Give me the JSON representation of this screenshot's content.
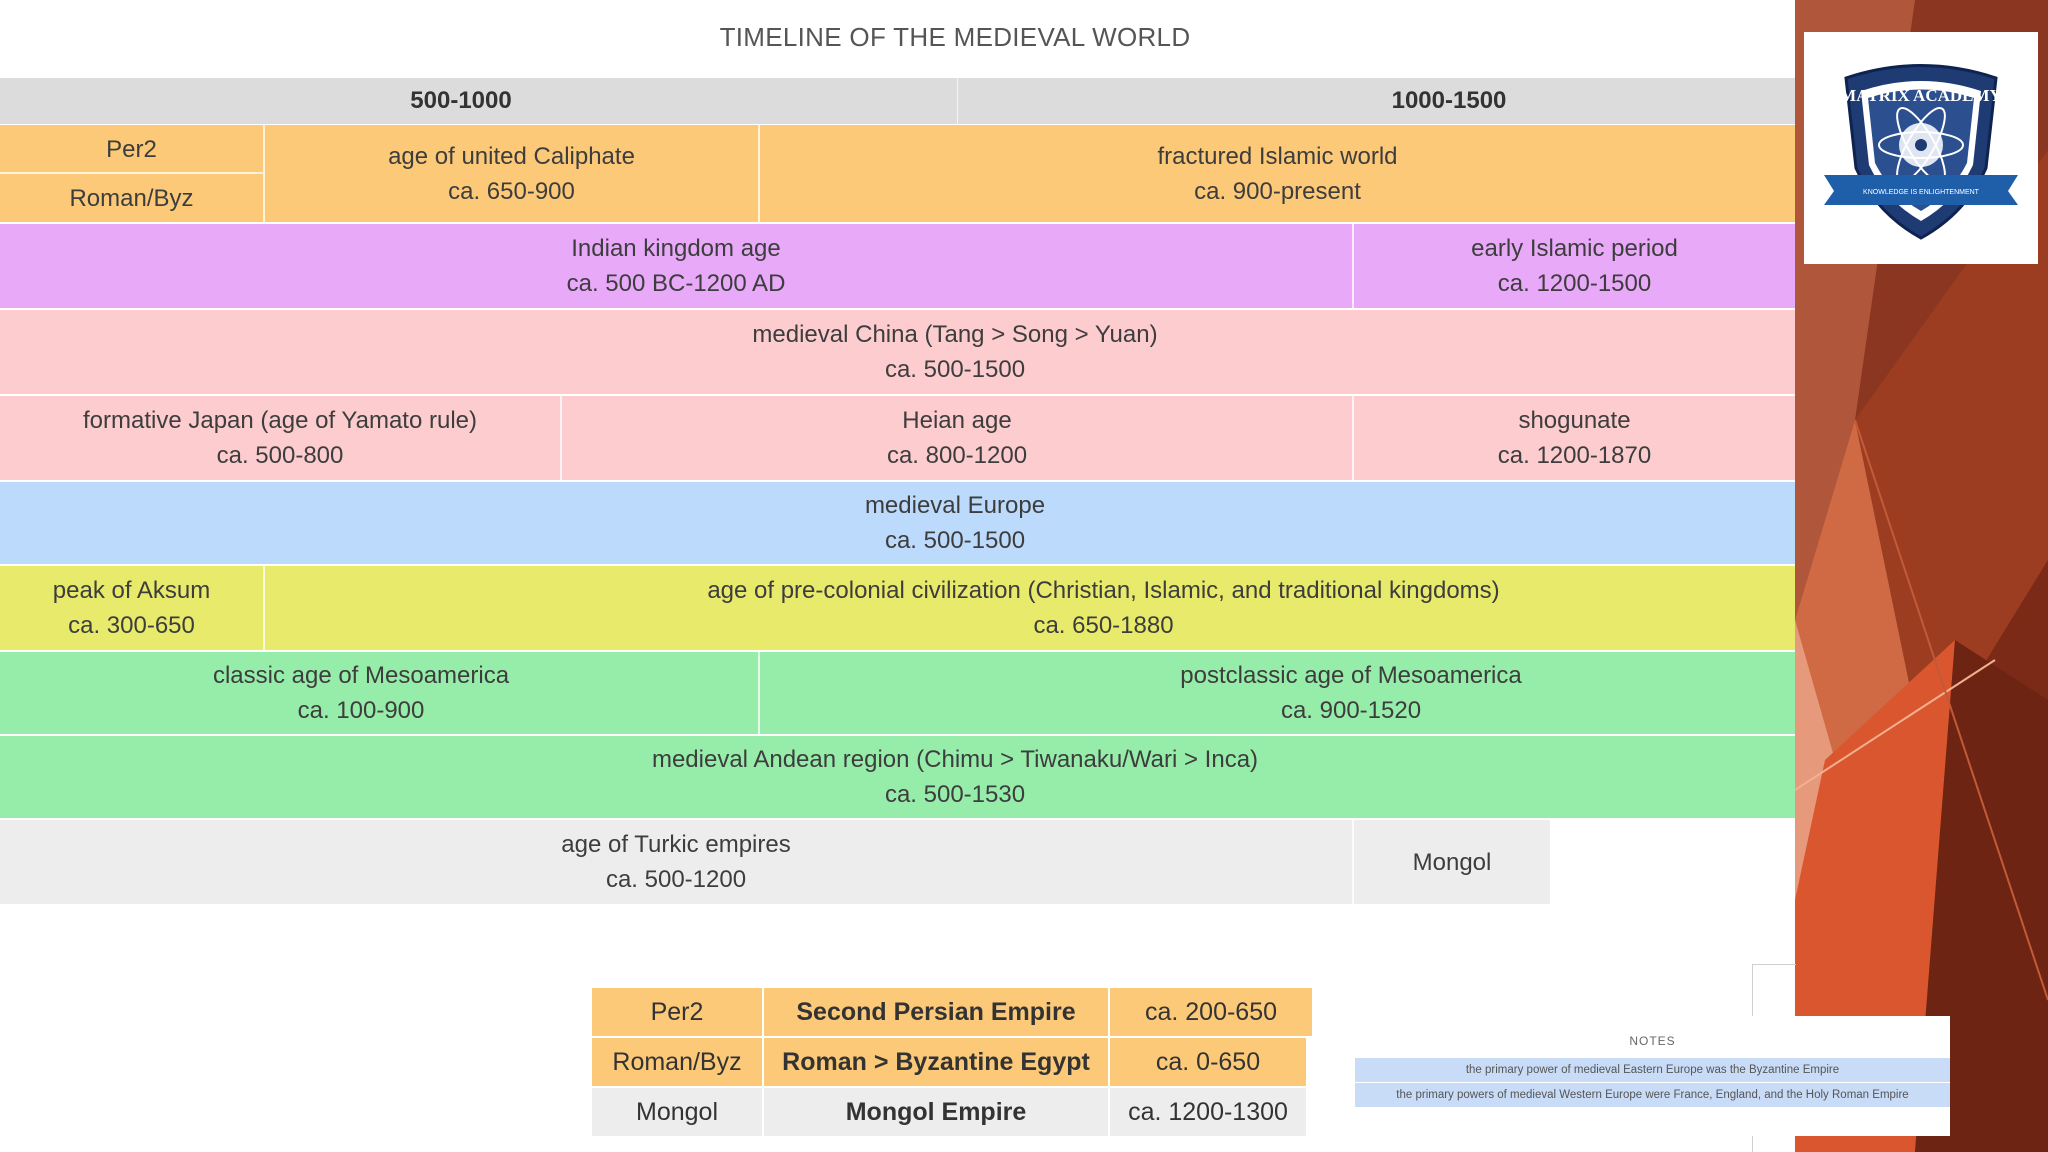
{
  "title": "TIMELINE OF THE MEDIEVAL WORLD",
  "header": {
    "left": "500-1000",
    "right": "1000-1500"
  },
  "rows": {
    "islamic": {
      "label_top": "Per2",
      "label_bottom": "Roman/Byz",
      "a_name": "age of united Caliphate",
      "a_date": "ca. 650-900",
      "b_name": "fractured Islamic world",
      "b_date": "ca. 900-present"
    },
    "india": {
      "a_name": "Indian kingdom age",
      "a_date": "ca. 500 BC-1200 AD",
      "b_name": "early Islamic period",
      "b_date": "ca. 1200-1500"
    },
    "china": {
      "name": "medieval China (Tang > Song > Yuan)",
      "date": "ca. 500-1500"
    },
    "japan": {
      "a_name": "formative Japan (age of Yamato rule)",
      "a_date": "ca. 500-800",
      "b_name": "Heian age",
      "b_date": "ca. 800-1200",
      "c_name": "shogunate",
      "c_date": "ca. 1200-1870"
    },
    "europe": {
      "name": "medieval Europe",
      "date": "ca. 500-1500"
    },
    "africa": {
      "a_name": "peak of Aksum",
      "a_date": "ca. 300-650",
      "b_name": "age of pre-colonial civilization (Christian, Islamic, and traditional kingdoms)",
      "b_date": "ca. 650-1880"
    },
    "mesoamerica": {
      "a_name": "classic age of Mesoamerica",
      "a_date": "ca. 100-900",
      "b_name": "postclassic age of Mesoamerica",
      "b_date": "ca. 900-1520"
    },
    "andes": {
      "name": "medieval Andean region (Chimu > Tiwanaku/Wari > Inca)",
      "date": "ca. 500-1530"
    },
    "steppe": {
      "a_name": "age of Turkic empires",
      "a_date": "ca. 500-1200",
      "b_name": "Mongol"
    }
  },
  "legend": [
    {
      "code": "Per2",
      "name": "Second Persian Empire",
      "date": "ca. 200-650"
    },
    {
      "code": "Roman/Byz",
      "name": "Roman > Byzantine Egypt",
      "date": "ca. 0-650"
    },
    {
      "code": "Mongol",
      "name": "Mongol Empire",
      "date": "ca. 1200-1300"
    }
  ],
  "notes": {
    "title": "NOTES",
    "line1": "the primary power of medieval Eastern Europe was the Byzantine Empire",
    "line2": "the primary powers of medieval Western Europe were France, England, and the Holy Roman Empire"
  },
  "logo": {
    "text": "MATRIX ACADEMY",
    "motto": "KNOWLEDGE IS ENLIGHTENMENT"
  },
  "colors": {
    "orange": "#fcc978",
    "purple": "#e8a9f9",
    "pink": "#fdcccf",
    "blue": "#bbdafc",
    "yellow": "#e8ea6c",
    "green": "#96eca9",
    "gray": "#ededed",
    "header": "#dcdcdc",
    "deco_dark": "#7a2a17",
    "deco_orange": "#d9562f"
  }
}
